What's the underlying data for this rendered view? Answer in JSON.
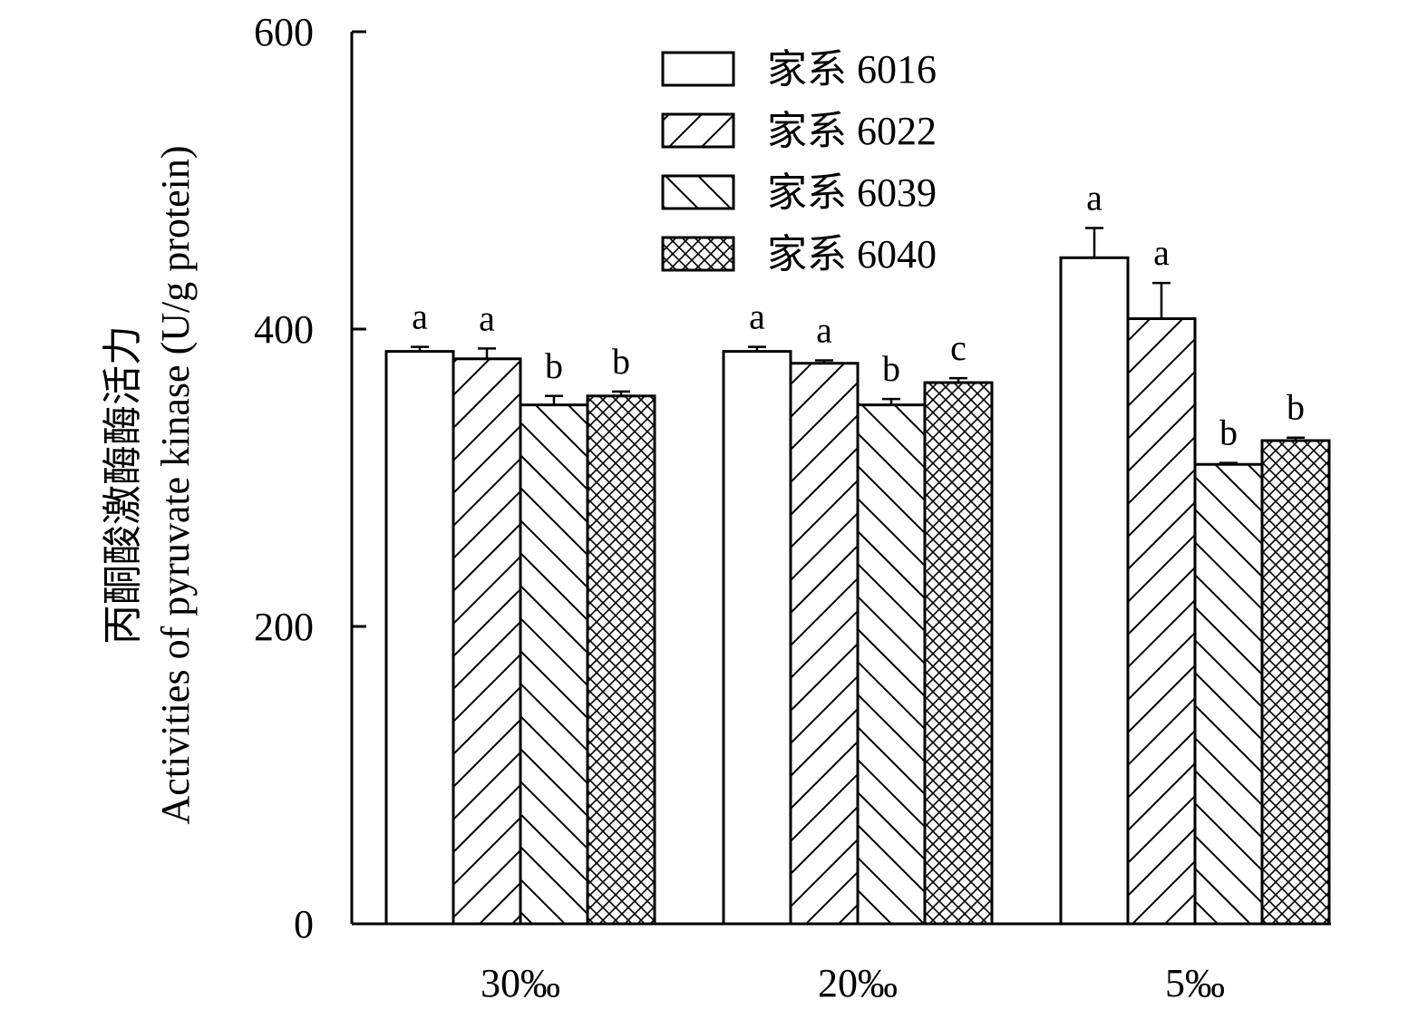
{
  "chart_data": {
    "type": "bar",
    "categories": [
      "30‰",
      "20‰",
      "5‰"
    ],
    "series": [
      {
        "name": "家系 6016",
        "pattern": "none",
        "values": [
          385,
          385,
          448
        ],
        "errors": [
          3,
          3,
          20
        ],
        "letters": [
          "a",
          "a",
          "a"
        ]
      },
      {
        "name": "家系 6022",
        "pattern": "diagonal-up",
        "values": [
          380,
          377,
          407
        ],
        "errors": [
          7,
          2,
          24
        ],
        "letters": [
          "a",
          "a",
          "a"
        ]
      },
      {
        "name": "家系 6039",
        "pattern": "diagonal-down",
        "values": [
          349,
          349,
          309
        ],
        "errors": [
          6,
          4,
          1
        ],
        "letters": [
          "b",
          "b",
          "b"
        ]
      },
      {
        "name": "家系 6040",
        "pattern": "crosshatch",
        "values": [
          355,
          364,
          325
        ],
        "errors": [
          3,
          3,
          2
        ],
        "letters": [
          "b",
          "c",
          "b"
        ]
      }
    ],
    "ylabel": "Activities of pyruvate kinase (U/g protein)",
    "ylabel_cn": "丙酮酸激酶酶活力",
    "xlabel": "",
    "ylim": [
      0,
      600
    ],
    "yticks": [
      0,
      200,
      400,
      600
    ],
    "legend_position": "top-center",
    "grid": false,
    "colors": {
      "bar_fill": "#ffffff",
      "stroke": "#000000"
    }
  }
}
